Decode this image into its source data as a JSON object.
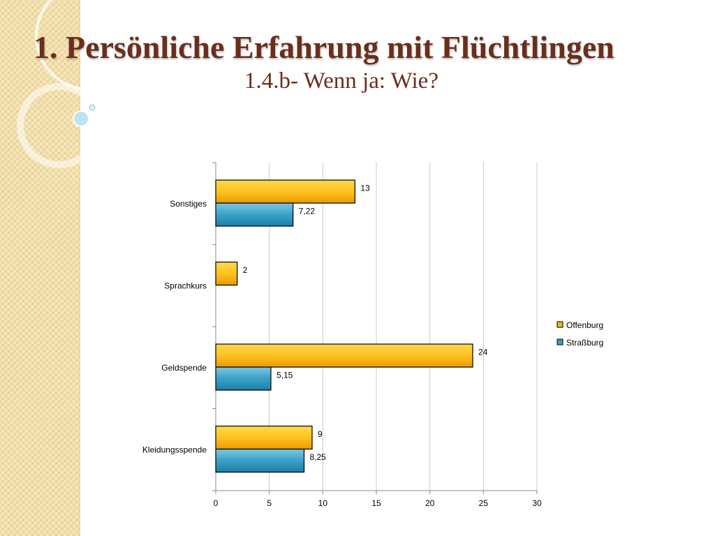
{
  "slide": {
    "title": "1. Persönliche Erfahrung mit Flüchtlingen",
    "subtitle": "1.4.b- Wenn ja: Wie?"
  },
  "colors": {
    "title": "#6b2e1c",
    "offenburg": "#f7b51c",
    "strassburg": "#3a9ec4",
    "grid": "#c8c8c8"
  },
  "chart_data": {
    "type": "bar",
    "orientation": "horizontal",
    "categories": [
      "Sonstiges",
      "Sprachkurs",
      "Geldspende",
      "Kleidungsspende"
    ],
    "series": [
      {
        "name": "Offenburg",
        "values": [
          13,
          2,
          24,
          9
        ],
        "labels": [
          "13",
          "2",
          "24",
          "9"
        ],
        "color": "#f7b51c"
      },
      {
        "name": "Straßburg",
        "values": [
          7.22,
          null,
          5.15,
          8.25
        ],
        "labels": [
          "7,22",
          "",
          "5,15",
          "8,25"
        ],
        "color": "#3a9ec4"
      }
    ],
    "xlim": [
      0,
      30
    ],
    "xticks": [
      0,
      5,
      10,
      15,
      20,
      25,
      30
    ],
    "grid": true,
    "legend": "right"
  }
}
